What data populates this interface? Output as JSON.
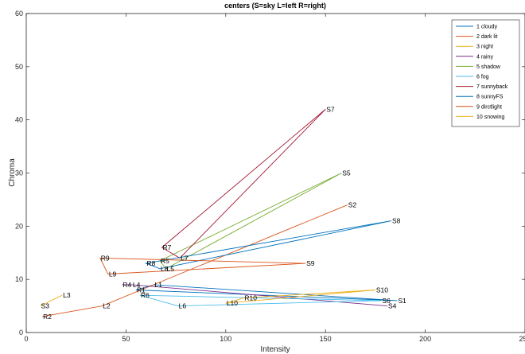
{
  "chart_data": {
    "type": "line",
    "title": "centers (S=sky L=left R=right)",
    "xlabel": "Intensity",
    "ylabel": "Chroma",
    "xlim": [
      0,
      250
    ],
    "ylim": [
      0,
      60
    ],
    "xticks": [
      0,
      50,
      100,
      150,
      200,
      250
    ],
    "yticks": [
      0,
      10,
      20,
      30,
      40,
      50,
      60
    ],
    "grid": false,
    "legend_position": "top-right",
    "series": [
      {
        "name": "1 cloudy",
        "color": "#0072BD",
        "points": [
          {
            "label": "S1",
            "x": 186,
            "y": 6
          },
          {
            "label": "L1",
            "x": 64,
            "y": 9
          },
          {
            "label": "R1",
            "x": 55,
            "y": 8
          },
          {
            "label": "S1",
            "x": 186,
            "y": 6
          }
        ]
      },
      {
        "name": "2 dark lit",
        "color": "#D95319",
        "points": [
          {
            "label": "S2",
            "x": 161,
            "y": 24
          },
          {
            "label": "L2",
            "x": 38,
            "y": 5
          },
          {
            "label": "R2",
            "x": 8,
            "y": 3
          }
        ]
      },
      {
        "name": "3 night",
        "color": "#EDB120",
        "points": [
          {
            "label": "S3",
            "x": 7,
            "y": 5
          },
          {
            "label": "L3",
            "x": 18,
            "y": 7
          }
        ]
      },
      {
        "name": "4 rainy",
        "color": "#7E2F8E",
        "points": [
          {
            "label": "S4",
            "x": 181,
            "y": 5
          },
          {
            "label": "L4",
            "x": 53,
            "y": 9
          },
          {
            "label": "R4",
            "x": 48,
            "y": 9
          },
          {
            "label": "L4",
            "x": 53,
            "y": 9
          },
          {
            "label": "S4",
            "x": 181,
            "y": 5
          }
        ]
      },
      {
        "name": "5 shadow",
        "color": "#77AC30",
        "points": [
          {
            "label": "S5",
            "x": 158,
            "y": 30
          },
          {
            "label": "R5",
            "x": 67,
            "y": 13.5
          },
          {
            "label": "L5",
            "x": 70,
            "y": 12
          },
          {
            "label": "S5",
            "x": 158,
            "y": 30
          }
        ]
      },
      {
        "name": "6 fog",
        "color": "#4DBEEE",
        "points": [
          {
            "label": "S6",
            "x": 178,
            "y": 6
          },
          {
            "label": "L6",
            "x": 76,
            "y": 5
          },
          {
            "label": "R6",
            "x": 57,
            "y": 7
          },
          {
            "label": "S6",
            "x": 178,
            "y": 6
          }
        ]
      },
      {
        "name": "7 sunnyback",
        "color": "#A2142F",
        "points": [
          {
            "label": "S7",
            "x": 150,
            "y": 42
          },
          {
            "label": "R7",
            "x": 68,
            "y": 16
          },
          {
            "label": "L7",
            "x": 77,
            "y": 14
          },
          {
            "label": "S7",
            "x": 150,
            "y": 42
          }
        ]
      },
      {
        "name": "8 sunnyFS",
        "color": "#0072BD",
        "points": [
          {
            "label": "S8",
            "x": 183,
            "y": 21
          },
          {
            "label": "R8",
            "x": 60,
            "y": 13
          },
          {
            "label": "L8",
            "x": 67,
            "y": 12
          },
          {
            "label": "S8",
            "x": 183,
            "y": 21
          }
        ]
      },
      {
        "name": "9 dirctlight",
        "color": "#D95319",
        "points": [
          {
            "label": "S9",
            "x": 140,
            "y": 13
          },
          {
            "label": "R9",
            "x": 37,
            "y": 14
          },
          {
            "label": "L9",
            "x": 41,
            "y": 11
          },
          {
            "label": "S9",
            "x": 140,
            "y": 13
          }
        ]
      },
      {
        "name": "10 snowing",
        "color": "#EDB120",
        "points": [
          {
            "label": "S10",
            "x": 175,
            "y": 8
          },
          {
            "label": "R10",
            "x": 109,
            "y": 6.5
          },
          {
            "label": "L10",
            "x": 100,
            "y": 5.5
          },
          {
            "label": "S10",
            "x": 175,
            "y": 8
          }
        ]
      }
    ]
  }
}
